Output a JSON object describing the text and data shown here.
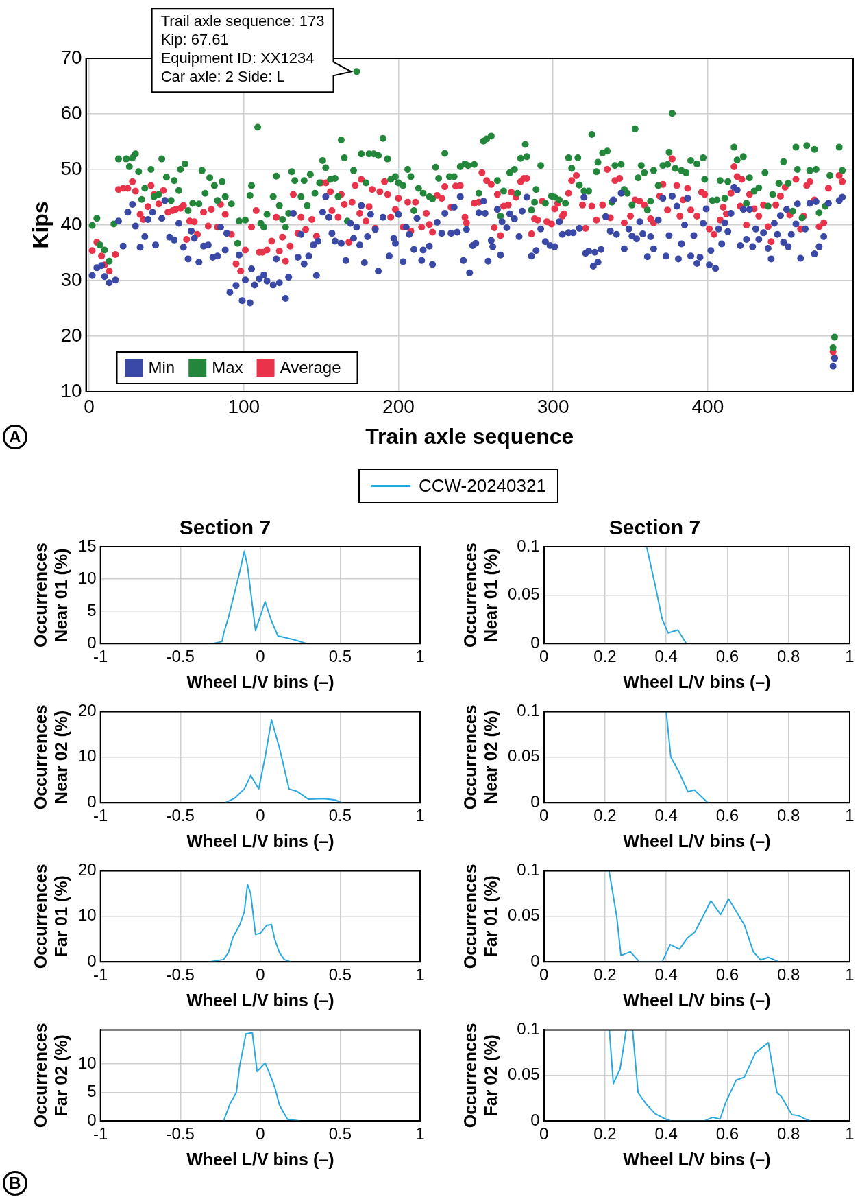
{
  "chart_data": [
    {
      "type": "scatter",
      "xlabel": "Train axle sequence",
      "ylabel": "Kips",
      "xlim": [
        -2,
        494
      ],
      "xticks": [
        0,
        100,
        200,
        300,
        400
      ],
      "ylim": [
        10,
        70
      ],
      "yticks": [
        10,
        20,
        30,
        40,
        50,
        60,
        70
      ],
      "grid": true,
      "legend": "bottom left",
      "marker": "circle",
      "annotations": [
        {
          "text": "Trail axle sequence: 173\nKip: 67.61\nEquipment ID: XX1234\nCar axle: 2 Side: L",
          "x": 173,
          "y": 67.61
        },
        "A"
      ],
      "series": [
        {
          "name": "Min",
          "color": "#3a48a6",
          "x": [
            2,
            5,
            8,
            10,
            13,
            17,
            19,
            22,
            25,
            28,
            30,
            33,
            36,
            38,
            41,
            43,
            47,
            49,
            52,
            55,
            58,
            61,
            64,
            66,
            68,
            71,
            74,
            77,
            80,
            83,
            85,
            88,
            89,
            91,
            95,
            97,
            99,
            101,
            104,
            105,
            107,
            110,
            113,
            115,
            119,
            121,
            123,
            127,
            129,
            132,
            135,
            137,
            139,
            142,
            145,
            147,
            148,
            151,
            153,
            155,
            157,
            159,
            163,
            166,
            169,
            171,
            173,
            175,
            176,
            178,
            180,
            182,
            185,
            187,
            190,
            194,
            197,
            198,
            200,
            203,
            205,
            207,
            210,
            212,
            215,
            216,
            220,
            222,
            225,
            228,
            230,
            234,
            236,
            238,
            240,
            242,
            244,
            246,
            248,
            250,
            252,
            255,
            256,
            258,
            260,
            261,
            264,
            266,
            267,
            270,
            272,
            275,
            278,
            280,
            283,
            286,
            289,
            292,
            295,
            298,
            301,
            304,
            306,
            310,
            313,
            317,
            320,
            321,
            323,
            326,
            327,
            329,
            331,
            334,
            337,
            339,
            341,
            344,
            346,
            349,
            351,
            354,
            356,
            358,
            361,
            363,
            365,
            368,
            371,
            373,
            375,
            377,
            380,
            381,
            383,
            385,
            387,
            389,
            391,
            393,
            395,
            397,
            399,
            401,
            402,
            405,
            407,
            409,
            411,
            413,
            415,
            417,
            419,
            421,
            423,
            425,
            427,
            429,
            431,
            433,
            436,
            439,
            441,
            443,
            445,
            447,
            449,
            451,
            452,
            454,
            457,
            458,
            460,
            463,
            466,
            469,
            470,
            472,
            475,
            478,
            481,
            482,
            485,
            487
          ],
          "values": [
            30.9,
            32.3,
            32.7,
            30.7,
            29.6,
            30.1,
            40.7,
            36.2,
            42.3,
            43.7,
            39.8,
            36,
            37.9,
            41,
            42.3,
            36.4,
            41.2,
            44.4,
            37.8,
            37.3,
            40.3,
            36,
            33.9,
            38.9,
            37.6,
            33.3,
            36.2,
            36.4,
            34.2,
            34.4,
            39.6,
            35.5,
            38.5,
            27.9,
            29.1,
            34.6,
            26.4,
            30.1,
            26,
            32.1,
            29.2,
            30.3,
            31,
            29.9,
            29.2,
            33.9,
            29.6,
            26.8,
            30.6,
            42.1,
            34.2,
            38.3,
            33,
            34.4,
            36.4,
            30.9,
            37.1,
            42.3,
            45.1,
            41.4,
            38.5,
            37.1,
            36.7,
            33.6,
            40.3,
            37.6,
            39.6,
            36.4,
            43.5,
            33.2,
            37.9,
            41.9,
            39.2,
            31.7,
            41.4,
            34.4,
            37.6,
            36.7,
            41.9,
            33.4,
            39.6,
            38.3,
            35.6,
            41.2,
            33.6,
            35.5,
            36.2,
            32.9,
            40.5,
            38.5,
            42.1,
            38.5,
            43.2,
            38.7,
            45.1,
            33.6,
            39.2,
            31.4,
            36.3,
            36.7,
            42.2,
            44.3,
            42.1,
            33.5,
            37.2,
            36.1,
            42.8,
            34.6,
            40.6,
            39.5,
            42,
            41.1,
            37.9,
            42.5,
            45,
            34.4,
            35.4,
            39.3,
            37,
            36.3,
            36.1,
            40.6,
            38.3,
            38.6,
            38.6,
            39.4,
            45,
            34.9,
            35.3,
            32.6,
            35.1,
            33.3,
            35.6,
            41.5,
            38.9,
            44.5,
            38.3,
            45.7,
            35.7,
            39.3,
            38,
            37.5,
            40.6,
            38.4,
            34.3,
            37.9,
            35.7,
            40.9,
            44.8,
            34.4,
            38.1,
            45.2,
            43.4,
            33.9,
            36.6,
            40,
            44.8,
            34.4,
            38.1,
            33.1,
            34.2,
            40.3,
            42.9,
            32.8,
            35.4,
            32.2,
            39.3,
            36.6,
            40.4,
            38.8,
            42.1,
            46.8,
            46.3,
            36.3,
            42.8,
            37.4,
            42.8,
            36.1,
            39.3,
            37.4,
            38.6,
            35.8,
            33.9,
            40.3,
            38.3,
            41.7,
            36.9,
            42.8,
            36.1,
            38.3,
            40.2,
            43.8,
            34,
            39.3,
            43.9,
            34.8,
            44.2,
            36.1,
            37.9,
            43.9,
            14.6,
            16,
            44.4,
            45
          ]
        },
        {
          "name": "Max",
          "color": "#22873a",
          "x": [
            2,
            5,
            7,
            10,
            13,
            16,
            19,
            24,
            26,
            28,
            30,
            32,
            34,
            36,
            40,
            42,
            45,
            47,
            50,
            53,
            55,
            58,
            59,
            62,
            64,
            67,
            71,
            73,
            75,
            78,
            81,
            83,
            86,
            88,
            92,
            96,
            97,
            101,
            104,
            105,
            109,
            111,
            113,
            115,
            119,
            121,
            123,
            125,
            127,
            129,
            131,
            133,
            137,
            139,
            141,
            143,
            146,
            149,
            151,
            153,
            156,
            159,
            161,
            163,
            165,
            167,
            171,
            173,
            176,
            179,
            181,
            184,
            187,
            190,
            193,
            195,
            198,
            200,
            203,
            206,
            208,
            210,
            213,
            216,
            220,
            222,
            224,
            226,
            230,
            233,
            236,
            240,
            243,
            245,
            249,
            252,
            255,
            257,
            260,
            264,
            266,
            268,
            272,
            275,
            277,
            279,
            282,
            283,
            286,
            288,
            289,
            292,
            295,
            299,
            301,
            304,
            308,
            310,
            312,
            316,
            317,
            320,
            323,
            325,
            328,
            329,
            332,
            335,
            338,
            340,
            344,
            346,
            348,
            351,
            353,
            355,
            357,
            359,
            361,
            363,
            365,
            368,
            371,
            374,
            375,
            377,
            379,
            383,
            386,
            389,
            393,
            397,
            398,
            403,
            406,
            408,
            411,
            413,
            417,
            419,
            423,
            425,
            427,
            430,
            433,
            437,
            439,
            442,
            446,
            449,
            452,
            455,
            457,
            458,
            461,
            464,
            466,
            469,
            470,
            472,
            476,
            479,
            481,
            482,
            485,
            487
          ],
          "values": [
            39.9,
            41.2,
            36.4,
            35.5,
            33.5,
            40.2,
            51.9,
            51.9,
            50.5,
            52.1,
            52.8,
            49.6,
            44.6,
            46.6,
            50,
            45.1,
            45.5,
            51.9,
            48.6,
            44.4,
            48,
            46.2,
            50,
            51,
            42.6,
            43.9,
            43.8,
            49.8,
            45.7,
            48.5,
            47.1,
            44.4,
            47.8,
            45.1,
            43.8,
            36.7,
            40.7,
            40.9,
            45.3,
            47.1,
            57.6,
            40.3,
            39.6,
            41.9,
            45.1,
            48.8,
            43.5,
            41,
            39.6,
            42.1,
            49.6,
            48,
            45.1,
            48,
            43.5,
            49.1,
            45.7,
            47.6,
            51.6,
            50.3,
            48.2,
            48.4,
            45.1,
            55.3,
            52.1,
            40.7,
            49.8,
            67.61,
            52.8,
            47.6,
            52.8,
            52.8,
            52.5,
            55.6,
            51.9,
            48.2,
            48.7,
            47.6,
            47.1,
            50,
            48.7,
            42.6,
            46.6,
            45.7,
            45.1,
            44.7,
            50.4,
            48.4,
            52.9,
            48.7,
            48.7,
            50.5,
            51,
            50.7,
            50.9,
            45.7,
            55.1,
            55.5,
            56,
            48,
            41.6,
            46.1,
            49.4,
            50,
            45.7,
            52,
            54.5,
            52.3,
            42.7,
            44.1,
            46.4,
            50.7,
            43.9,
            45.2,
            45,
            44.5,
            43.9,
            52.1,
            50.2,
            52.1,
            47.2,
            46.1,
            46.1,
            56.3,
            49.6,
            51.3,
            53,
            53.3,
            44.1,
            50.7,
            50.9,
            46.4,
            45.7,
            43.6,
            57.3,
            48.5,
            50.7,
            49.4,
            42.7,
            44.3,
            49.8,
            47.1,
            50.7,
            50.9,
            53.1,
            60.1,
            50.2,
            49.8,
            49.4,
            51.6,
            51,
            52.1,
            48.2,
            44.4,
            44.5,
            48,
            44.8,
            47.8,
            54,
            51.7,
            52.3,
            43.9,
            48.5,
            46.1,
            46.7,
            49.4,
            43.4,
            45.5,
            47.5,
            51.4,
            47.5,
            42.5,
            54,
            50,
            41.3,
            54.3,
            49.8,
            53.6,
            50,
            42.2,
            43.4,
            48.9,
            17.9,
            19.8,
            54,
            49.8
          ]
        },
        {
          "name": "Average",
          "color": "#e8334a",
          "x": [
            2,
            5,
            8,
            10,
            13,
            17,
            19,
            22,
            25,
            28,
            30,
            33,
            35,
            38,
            40,
            42,
            45,
            48,
            51,
            54,
            56,
            59,
            61,
            63,
            65,
            68,
            70,
            74,
            77,
            79,
            83,
            85,
            88,
            92,
            95,
            98,
            101,
            105,
            108,
            110,
            112,
            115,
            118,
            121,
            123,
            125,
            127,
            130,
            132,
            135,
            137,
            140,
            144,
            147,
            150,
            153,
            156,
            157,
            161,
            163,
            165,
            168,
            170,
            172,
            175,
            176,
            179,
            181,
            183,
            185,
            188,
            191,
            193,
            195,
            198,
            200,
            203,
            206,
            208,
            211,
            215,
            218,
            220,
            222,
            225,
            228,
            230,
            234,
            237,
            240,
            243,
            244,
            249,
            252,
            254,
            257,
            260,
            262,
            264,
            266,
            268,
            271,
            273,
            276,
            279,
            281,
            283,
            286,
            288,
            290,
            293,
            296,
            299,
            301,
            303,
            306,
            307,
            310,
            312,
            315,
            319,
            321,
            325,
            328,
            332,
            335,
            337,
            340,
            343,
            346,
            350,
            353,
            356,
            359,
            363,
            365,
            369,
            371,
            374,
            377,
            380,
            382,
            384,
            387,
            389,
            393,
            396,
            398,
            401,
            404,
            408,
            410,
            412,
            415,
            417,
            419,
            421,
            422,
            425,
            427,
            430,
            433,
            436,
            439,
            441,
            444,
            447,
            450,
            453,
            457,
            460,
            462,
            464,
            466,
            469,
            472,
            475,
            478,
            481,
            482,
            485,
            487
          ],
          "values": [
            35.4,
            36.9,
            34.4,
            32.8,
            31.7,
            34.7,
            46.4,
            46.6,
            46.6,
            47.8,
            46.1,
            41.9,
            41,
            43.3,
            47.1,
            45.5,
            43.8,
            46.2,
            42.3,
            42.6,
            42.8,
            43,
            43.5,
            37.4,
            40.7,
            40.6,
            38.3,
            42.3,
            39.8,
            42.8,
            39.6,
            43.7,
            41.9,
            38.3,
            33,
            31.7,
            35.5,
            39.6,
            42.6,
            35.1,
            35.1,
            35.5,
            37.1,
            41.4,
            35.3,
            37.8,
            33.5,
            36.2,
            45.5,
            38.5,
            41.4,
            39.2,
            41,
            38,
            47.6,
            47.6,
            46,
            42.6,
            41.4,
            45.5,
            43.7,
            36.9,
            44.1,
            47.1,
            42.1,
            48.2,
            40.7,
            43.3,
            46.4,
            39.4,
            46,
            47.8,
            45.5,
            41.4,
            42.8,
            44.8,
            39.6,
            44.1,
            38.9,
            44.1,
            39.6,
            42.1,
            40.1,
            38.7,
            45.3,
            44.8,
            46.9,
            43.2,
            47,
            47.1,
            41.4,
            40.4,
            43.9,
            44.1,
            49.4,
            48,
            47.3,
            39.5,
            45.5,
            38.1,
            43.4,
            43.6,
            45.9,
            45,
            47.8,
            48.4,
            48.4,
            38.4,
            41.1,
            40.9,
            44.3,
            40.6,
            40.2,
            42.9,
            43.9,
            41.6,
            42,
            45.7,
            48,
            48.9,
            43.6,
            39.4,
            43.4,
            40.9,
            43.6,
            50,
            41.3,
            48,
            48.4,
            40.4,
            41.6,
            44.5,
            44.3,
            43.6,
            41.1,
            40.4,
            45.2,
            47.3,
            42.7,
            51.9,
            47.1,
            41.6,
            44.5,
            46.6,
            42.7,
            41.6,
            45.9,
            45.5,
            39.3,
            38.3,
            40.9,
            43.2,
            42,
            45.7,
            50.5,
            48.7,
            43.4,
            48.2,
            40,
            45.5,
            42.9,
            41.6,
            43.6,
            39.7,
            37,
            43.6,
            45.2,
            46.8,
            41.8,
            48.2,
            39.3,
            41.6,
            47.1,
            47.8,
            44.5,
            39.7,
            40.4,
            46.6,
            17.2,
            16.1,
            48.9,
            47.8
          ]
        }
      ]
    },
    {
      "type": "line",
      "title": "Section 7",
      "xlabel": "Wheel L/V bins (–)",
      "ylabel": "Occurrences\nNear 01 (%)",
      "xlim": [
        -1,
        1
      ],
      "xticks": [
        -1,
        -0.5,
        0,
        0.5,
        1
      ],
      "ylim": [
        0,
        15
      ],
      "yticks": [
        0,
        5,
        10,
        15
      ],
      "grid": true,
      "legend": "top",
      "line_style": "solid",
      "series": [
        {
          "name": "CCW-20240321",
          "color": "#29a8df",
          "x": [
            -0.3,
            -0.24,
            -0.23,
            -0.2,
            -0.16,
            -0.13,
            -0.1,
            -0.08,
            -0.03,
            0.03,
            0.07,
            0.11,
            0.21,
            0.29
          ],
          "values": [
            0,
            0.3,
            1.5,
            4,
            8,
            11,
            14.3,
            12,
            2,
            6.5,
            3.5,
            1.2,
            0.6,
            0
          ]
        }
      ]
    },
    {
      "type": "line",
      "title": "Section 7",
      "xlabel": "Wheel L/V bins (–)",
      "ylabel": "Occurrences\nNear 01 (%)",
      "xlim": [
        0,
        1
      ],
      "xticks": [
        0,
        0.2,
        0.4,
        0.6,
        0.8,
        1
      ],
      "ylim": [
        0,
        0.1
      ],
      "yticks": [
        0,
        0.05,
        0.1
      ],
      "grid": true,
      "line_style": "solid",
      "series": [
        {
          "color": "#29a8df",
          "x": [
            0.336,
            0.364,
            0.387,
            0.406,
            0.438,
            0.466
          ],
          "values": [
            0.1,
            0.06,
            0.025,
            0.011,
            0.014,
            0
          ]
        }
      ]
    },
    {
      "type": "line",
      "xlabel": "Wheel L/V bins (–)",
      "ylabel": "Occurrences\nNear 02 (%)",
      "xlim": [
        -1,
        1
      ],
      "xticks": [
        -1,
        -0.5,
        0,
        0.5,
        1
      ],
      "ylim": [
        0,
        20
      ],
      "yticks": [
        0,
        10,
        20
      ],
      "grid": true,
      "line_style": "solid",
      "series": [
        {
          "color": "#29a8df",
          "x": [
            -0.22,
            -0.16,
            -0.1,
            -0.06,
            -0.01,
            0.03,
            0.07,
            0.12,
            0.18,
            0.23,
            0.3,
            0.4,
            0.47,
            0.51
          ],
          "values": [
            0,
            1,
            3,
            6,
            3,
            10,
            18.2,
            12,
            3,
            2.5,
            0.8,
            0.9,
            0.6,
            0
          ]
        }
      ]
    },
    {
      "type": "line",
      "xlabel": "Wheel L/V bins (–)",
      "ylabel": "Occurrences\nNear 02 (%)",
      "xlim": [
        0,
        1
      ],
      "xticks": [
        0,
        0.2,
        0.4,
        0.6,
        0.8,
        1
      ],
      "ylim": [
        0,
        0.1
      ],
      "yticks": [
        0,
        0.05,
        0.1
      ],
      "grid": true,
      "line_style": "solid",
      "series": [
        {
          "color": "#29a8df",
          "x": [
            0.4,
            0.415,
            0.44,
            0.471,
            0.492,
            0.536
          ],
          "values": [
            0.1,
            0.05,
            0.035,
            0.012,
            0.014,
            0
          ]
        }
      ]
    },
    {
      "type": "line",
      "xlabel": "Wheel L/V bins (–)",
      "ylabel": "Occurrences\nFar 01 (%)",
      "xlim": [
        -1,
        1
      ],
      "xticks": [
        -1,
        -0.5,
        0,
        0.5,
        1
      ],
      "ylim": [
        0,
        20
      ],
      "yticks": [
        0,
        10,
        20
      ],
      "grid": true,
      "line_style": "solid",
      "series": [
        {
          "color": "#29a8df",
          "x": [
            -0.32,
            -0.23,
            -0.2,
            -0.17,
            -0.13,
            -0.1,
            -0.08,
            -0.06,
            -0.03,
            0,
            0.04,
            0.07,
            0.09,
            0.12,
            0.15,
            0.19
          ],
          "values": [
            0,
            0.5,
            2,
            5.5,
            8,
            11,
            17,
            15,
            6,
            6.3,
            8,
            8.2,
            5,
            2,
            0.5,
            0
          ]
        }
      ]
    },
    {
      "type": "line",
      "xlabel": "Wheel L/V bins (–)",
      "ylabel": "Occurrences\nFar 01 (%)",
      "xlim": [
        0,
        1
      ],
      "xticks": [
        0,
        0.2,
        0.4,
        0.6,
        0.8,
        1
      ],
      "ylim": [
        0,
        0.1
      ],
      "yticks": [
        0,
        0.05,
        0.1
      ],
      "grid": true,
      "line_style": "solid",
      "series": [
        {
          "color": "#29a8df",
          "x": [
            0.213,
            0.238,
            0.252,
            0.283,
            0.312,
            0.387,
            0.413,
            0.443,
            0.469,
            0.494,
            0.546,
            0.578,
            0.604,
            0.655,
            0.685,
            0.709,
            0.734,
            0.769
          ],
          "values": [
            0.1,
            0.05,
            0.007,
            0.011,
            0,
            0,
            0.019,
            0.014,
            0.026,
            0.033,
            0.067,
            0.052,
            0.069,
            0.041,
            0.011,
            0.002,
            0.005,
            0
          ]
        }
      ]
    },
    {
      "type": "line",
      "xlabel": "Wheel L/V bins (–)",
      "ylabel": "Occurrences\nFar 02 (%)",
      "xlim": [
        -1,
        1
      ],
      "xticks": [
        -1,
        -0.5,
        0,
        0.5,
        1
      ],
      "ylim": [
        0,
        16
      ],
      "yticks": [
        0,
        5,
        10
      ],
      "grid": true,
      "line_style": "solid",
      "annotations": [
        "B"
      ],
      "series": [
        {
          "color": "#29a8df",
          "x": [
            -0.23,
            -0.19,
            -0.15,
            -0.13,
            -0.09,
            -0.05,
            -0.02,
            0.03,
            0.06,
            0.09,
            0.12,
            0.17,
            0.25
          ],
          "values": [
            0,
            3,
            5,
            9.5,
            15.3,
            15.5,
            8.7,
            10.2,
            8.2,
            6,
            2.8,
            0.3,
            0
          ]
        }
      ]
    },
    {
      "type": "line",
      "xlabel": "Wheel L/V bins (–)",
      "ylabel": "Occurrences\nFar 02 (%)",
      "xlim": [
        0,
        1
      ],
      "xticks": [
        0,
        0.2,
        0.4,
        0.6,
        0.8,
        1
      ],
      "ylim": [
        0,
        0.1
      ],
      "yticks": [
        0,
        0.05,
        0.1
      ],
      "grid": true,
      "line_style": "solid",
      "series": [
        {
          "color": "#29a8df",
          "x": [
            0.214,
            0.227,
            0.249,
            0.269,
            0.28,
            0.29,
            0.308,
            0.336,
            0.364,
            0.392,
            0.415,
            0.524,
            0.552,
            0.576,
            0.594,
            0.629,
            0.655,
            0.692,
            0.734,
            0.762,
            0.776,
            0.811,
            0.832,
            0.849,
            0.871
          ],
          "values": [
            0.1,
            0.041,
            0.057,
            0.1,
            null,
            0.1,
            0.031,
            0.018,
            0.008,
            0.003,
            0,
            0,
            0.004,
            0.002,
            0.02,
            0.045,
            0.048,
            0.075,
            0.086,
            0.031,
            0.027,
            0.007,
            0.006,
            0.003,
            0
          ]
        }
      ]
    }
  ]
}
